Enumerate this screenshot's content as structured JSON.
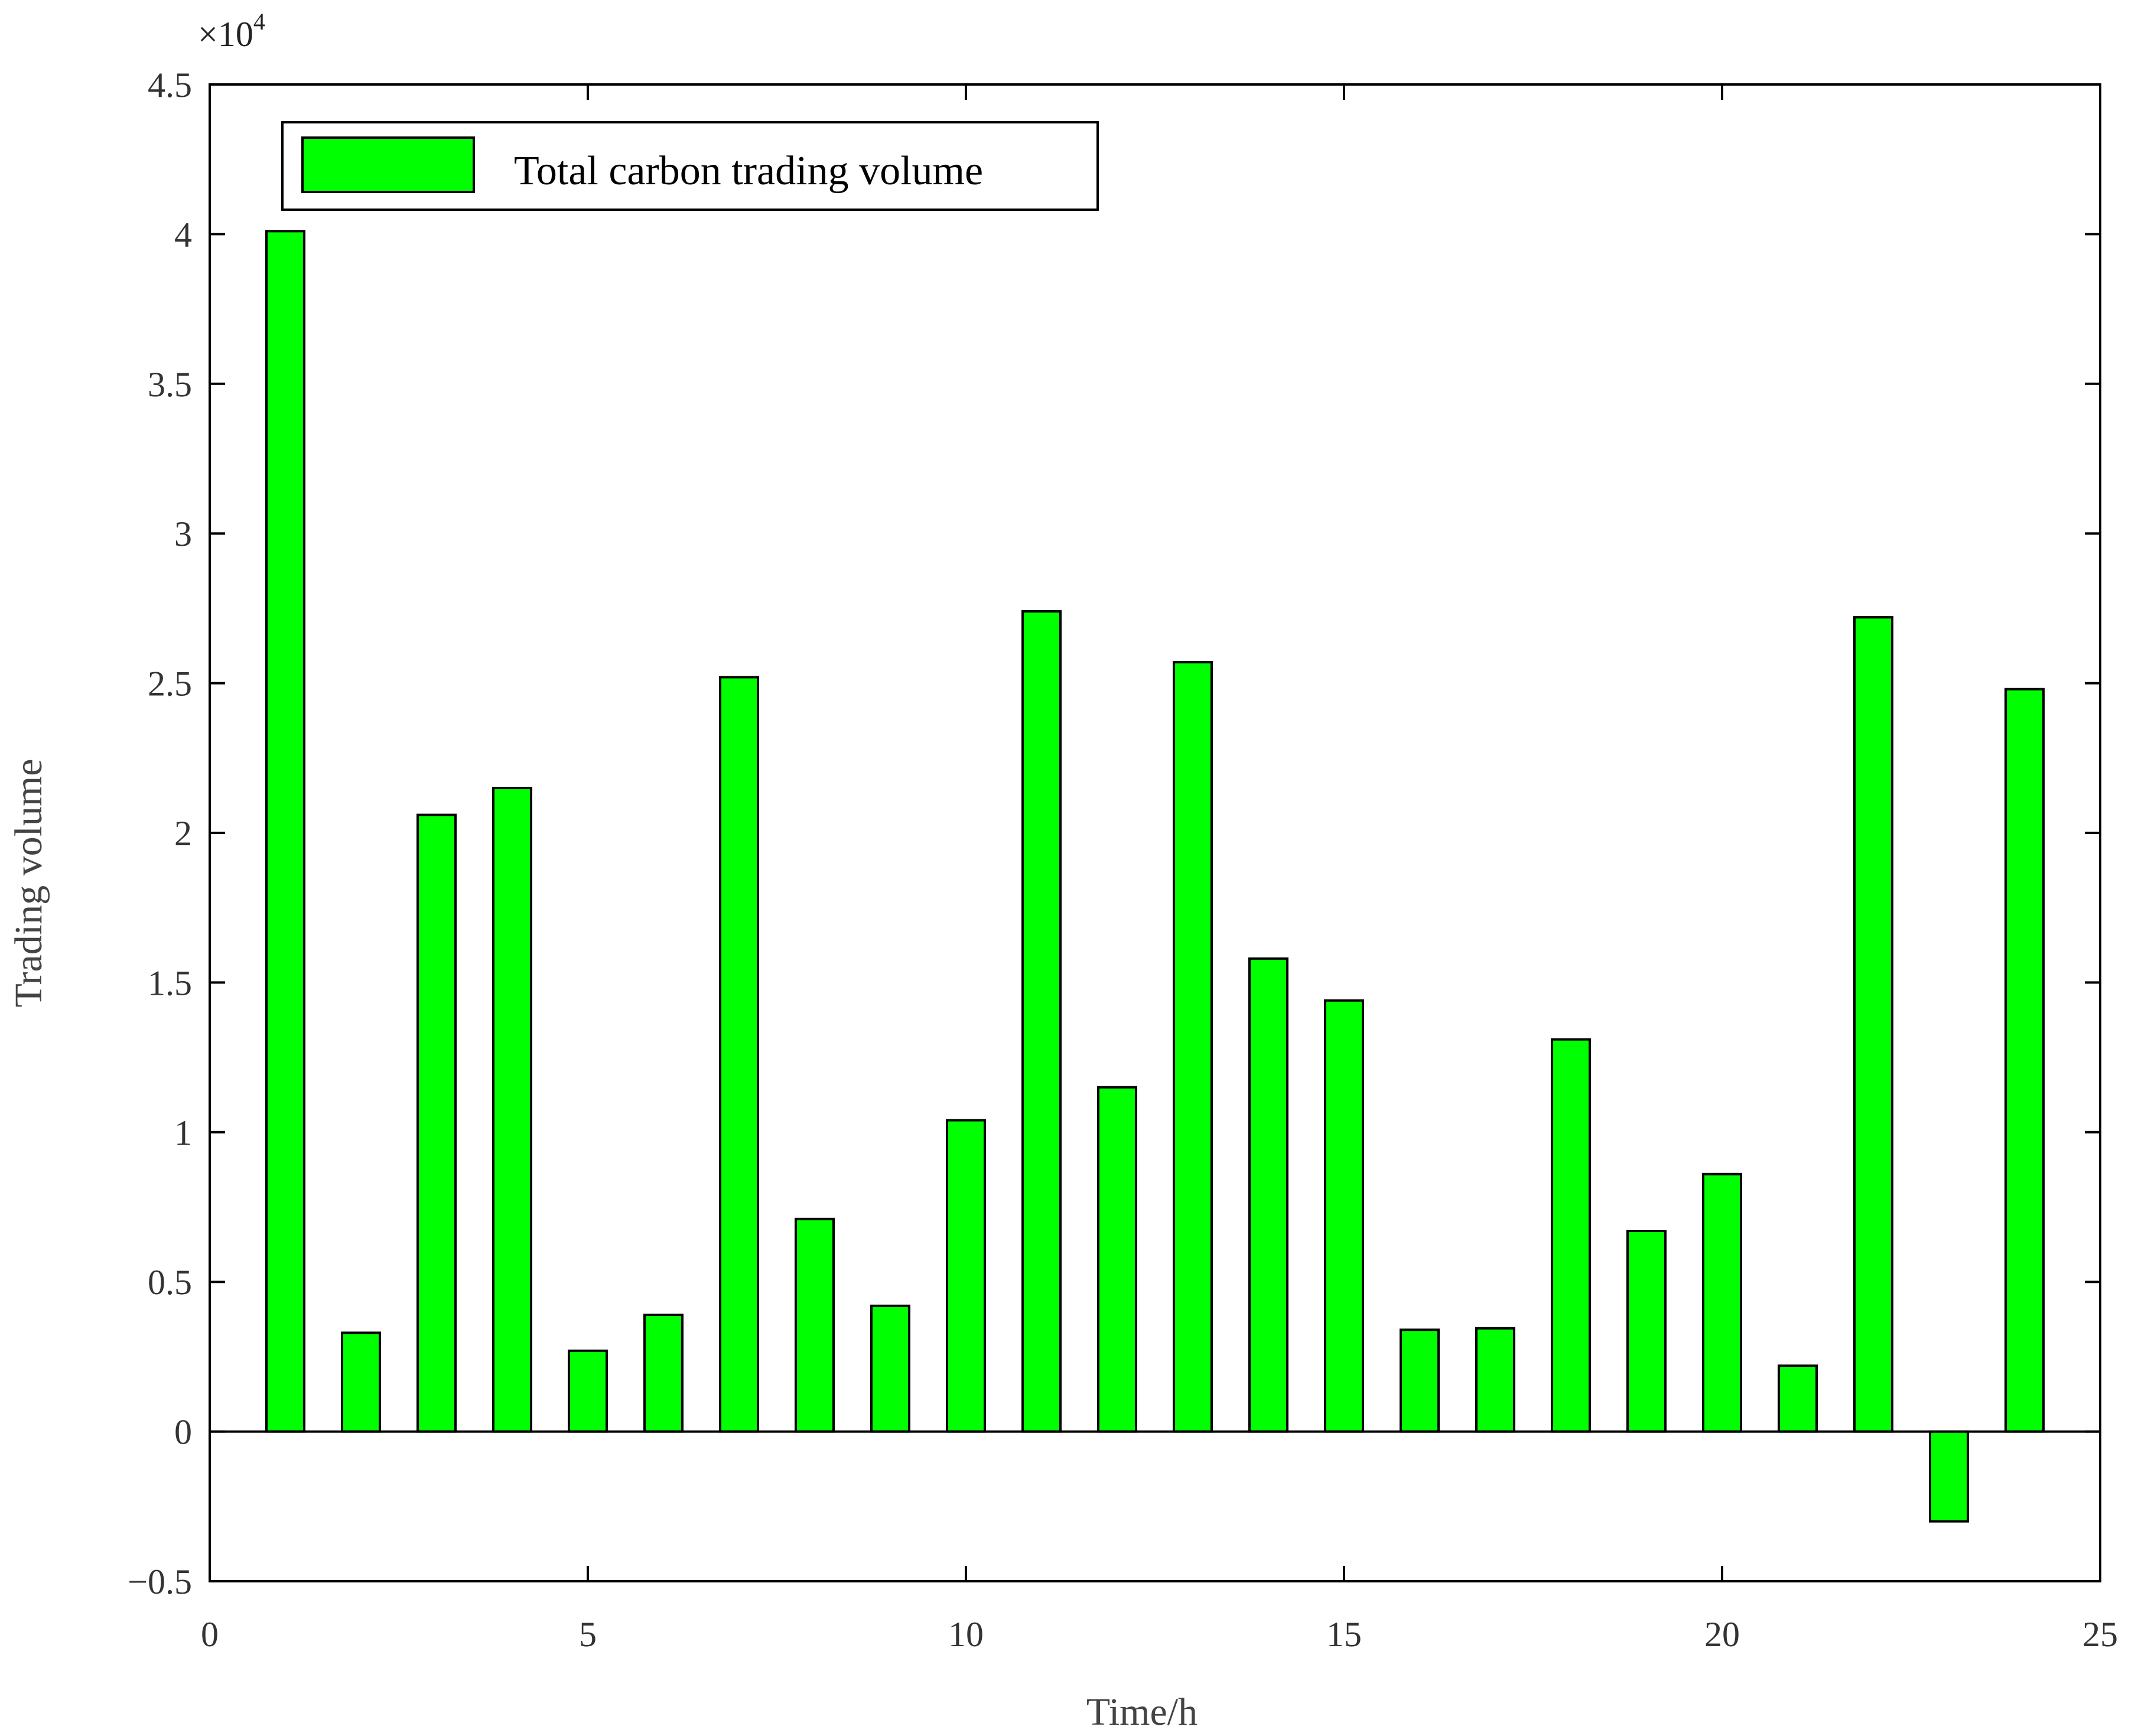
{
  "chart_data": {
    "type": "bar",
    "x": [
      1,
      2,
      3,
      4,
      5,
      6,
      7,
      8,
      9,
      10,
      11,
      12,
      13,
      14,
      15,
      16,
      17,
      18,
      19,
      20,
      21,
      22,
      23,
      24
    ],
    "series": [
      {
        "name": "Total carbon trading volume",
        "values": [
          40100,
          3300,
          20600,
          21500,
          2700,
          3900,
          25200,
          7100,
          4200,
          10400,
          27400,
          11500,
          25700,
          15800,
          14400,
          3400,
          3450,
          13100,
          6700,
          8600,
          2200,
          27200,
          -3000,
          24800
        ],
        "color": "#00ff00"
      }
    ],
    "xlabel": "Time/h",
    "ylabel": "Trading volume",
    "xlim": [
      0,
      25
    ],
    "ylim": [
      -5000,
      45000
    ],
    "x_ticks": [
      0,
      5,
      10,
      15,
      20,
      25
    ],
    "x_tick_labels": [
      "0",
      "5",
      "10",
      "15",
      "20",
      "25"
    ],
    "y_ticks": [
      -5000,
      0,
      5000,
      10000,
      15000,
      20000,
      25000,
      30000,
      35000,
      40000,
      45000
    ],
    "y_tick_labels": [
      "−0.5",
      "0",
      "0.5",
      "1",
      "1.5",
      "2",
      "2.5",
      "3",
      "3.5",
      "4",
      "4.5"
    ],
    "y_exponent_base": "×10",
    "y_exponent_power": "4",
    "legend_position": "top-left",
    "grid": false,
    "bar_edge_color": "#000000"
  }
}
